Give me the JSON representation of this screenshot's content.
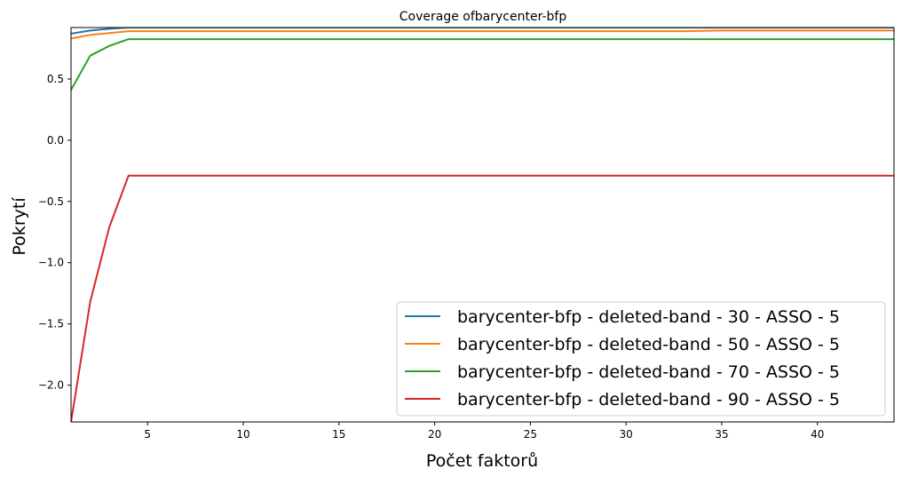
{
  "chart_data": {
    "type": "line",
    "title": "Coverage ofbarycenter-bfp",
    "xlabel": "Počet faktorů",
    "ylabel": "Pokrytí",
    "xlim": [
      1,
      44
    ],
    "ylim": [
      -2.3,
      0.92
    ],
    "xticks": [
      5,
      10,
      15,
      20,
      25,
      30,
      35,
      40
    ],
    "yticks": [
      -2.0,
      -1.5,
      -1.0,
      -0.5,
      0.0,
      0.5
    ],
    "ytick_labels": [
      "−2.0",
      "−1.5",
      "−1.0",
      "−0.5",
      "0.0",
      "0.5"
    ],
    "xtick_labels": [
      "5",
      "10",
      "15",
      "20",
      "25",
      "30",
      "35",
      "40"
    ],
    "grid": false,
    "legend_position": "bottom-right",
    "series": [
      {
        "name": "barycenter-bfp - deleted-band - 30 - ASSO - 5",
        "color": "#1f77b4",
        "x": [
          1,
          2,
          3,
          4,
          5,
          6,
          10,
          15,
          20,
          25,
          30,
          35,
          40,
          44
        ],
        "y": [
          0.87,
          0.895,
          0.91,
          0.92,
          0.92,
          0.92,
          0.92,
          0.92,
          0.92,
          0.92,
          0.92,
          0.92,
          0.92,
          0.92
        ]
      },
      {
        "name": "barycenter-bfp - deleted-band - 50 - ASSO - 5",
        "color": "#ff7f0e",
        "x": [
          1,
          2,
          3,
          4,
          5,
          10,
          15,
          20,
          25,
          30,
          33,
          35,
          36,
          40,
          44
        ],
        "y": [
          0.83,
          0.86,
          0.875,
          0.89,
          0.89,
          0.89,
          0.89,
          0.89,
          0.89,
          0.89,
          0.89,
          0.895,
          0.895,
          0.895,
          0.895
        ]
      },
      {
        "name": "barycenter-bfp - deleted-band - 70 - ASSO - 5",
        "color": "#2ca02c",
        "x": [
          1,
          2,
          3,
          4,
          5,
          10,
          15,
          20,
          25,
          30,
          35,
          40,
          44
        ],
        "y": [
          0.41,
          0.69,
          0.77,
          0.825,
          0.825,
          0.825,
          0.825,
          0.825,
          0.825,
          0.825,
          0.825,
          0.825,
          0.825
        ]
      },
      {
        "name": "barycenter-bfp - deleted-band - 90 - ASSO - 5",
        "color": "#d62728",
        "x": [
          1,
          2,
          3,
          4,
          5,
          10,
          15,
          20,
          25,
          30,
          35,
          40,
          44
        ],
        "y": [
          -2.3,
          -1.32,
          -0.71,
          -0.29,
          -0.29,
          -0.29,
          -0.29,
          -0.29,
          -0.29,
          -0.29,
          -0.29,
          -0.29,
          -0.29
        ]
      }
    ]
  }
}
